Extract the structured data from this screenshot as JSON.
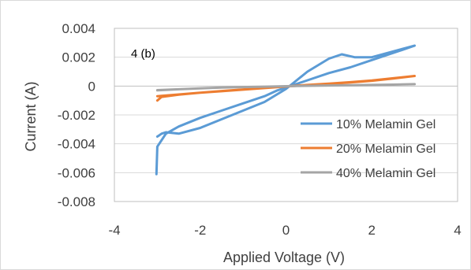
{
  "chart_data": {
    "type": "line",
    "title": "",
    "annotation": "4 (b)",
    "xlabel": "Applied Voltage (V)",
    "ylabel": "Current (A)",
    "xlim": [
      -4,
      4
    ],
    "ylim": [
      -0.008,
      0.004
    ],
    "x_ticks": [
      -4,
      -2,
      0,
      2,
      4
    ],
    "x_tick_labels": [
      "-4",
      "-2",
      "0",
      "2",
      "4"
    ],
    "y_ticks": [
      0.004,
      0.002,
      0,
      -0.002,
      -0.004,
      -0.006,
      -0.008
    ],
    "y_tick_labels": [
      "0.004",
      "0.002",
      "0",
      "-0.002",
      "-0.004",
      "-0.006",
      "-0.008"
    ],
    "grid": "horizontal",
    "legend_position": "bottom-right",
    "series": [
      {
        "name": "10% Melamin Gel",
        "color": "#5b9bd5",
        "x": [
          -3,
          -2.95,
          -2.9,
          -2.8,
          -2.5,
          -2,
          -1.5,
          -1,
          -0.5,
          0,
          0.5,
          1,
          1.3,
          1.6,
          2,
          2.5,
          3,
          2.8,
          2.5,
          2,
          1.5,
          1,
          0.5,
          0.2,
          0,
          -0.2,
          -0.5,
          -1,
          -1.5,
          -2,
          -2.5,
          -2.8,
          -3,
          -3.02
        ],
        "y": [
          -0.0035,
          -0.0034,
          -0.0033,
          -0.0032,
          -0.0033,
          -0.0029,
          -0.0023,
          -0.0017,
          -0.0011,
          -0.0002,
          0.001,
          0.0019,
          0.0022,
          0.002,
          0.002,
          0.0024,
          0.0028,
          0.0026,
          0.0023,
          0.0018,
          0.0013,
          0.0009,
          0.0004,
          0.0001,
          -0.0001,
          -0.0003,
          -0.0007,
          -0.0012,
          -0.0017,
          -0.0022,
          -0.0028,
          -0.0033,
          -0.0042,
          -0.0061
        ]
      },
      {
        "name": "20% Melamin Gel",
        "color": "#ed7d31",
        "x": [
          -3,
          -2.9,
          -2.5,
          -2,
          -1.5,
          -1,
          -0.5,
          0,
          0.5,
          1,
          1.5,
          2,
          2.5,
          3,
          2.5,
          2,
          1.5,
          1,
          0.5,
          0,
          -0.5,
          -1,
          -1.5,
          -2,
          -2.5,
          -2.9,
          -3
        ],
        "y": [
          -0.0007,
          -0.00068,
          -0.00058,
          -0.00046,
          -0.00036,
          -0.00025,
          -0.00014,
          -3e-05,
          6e-05,
          0.00015,
          0.00025,
          0.00037,
          0.00052,
          0.0007,
          0.00054,
          0.00039,
          0.00027,
          0.00017,
          8e-05,
          -2e-05,
          -0.00012,
          -0.00023,
          -0.00034,
          -0.00046,
          -0.0006,
          -0.00075,
          -0.001
        ]
      },
      {
        "name": "40% Melamin Gel",
        "color": "#a5a5a5",
        "x": [
          -3,
          -2.5,
          -2,
          -1.5,
          -1,
          -0.5,
          0,
          0.5,
          1,
          1.5,
          2,
          2.5,
          3,
          2.5,
          2,
          1.5,
          1,
          0.5,
          0,
          -0.5,
          -1,
          -1.5,
          -2,
          -2.5,
          -3
        ],
        "y": [
          -0.0003,
          -0.00022,
          -0.00016,
          -0.00011,
          -7e-05,
          -4e-05,
          -1e-05,
          2e-05,
          4e-05,
          6e-05,
          8e-05,
          0.0001,
          0.00013,
          0.0001,
          8e-05,
          6e-05,
          4e-05,
          2e-05,
          -1e-05,
          -4e-05,
          -7e-05,
          -0.00011,
          -0.00016,
          -0.00022,
          -0.00028
        ]
      }
    ]
  }
}
